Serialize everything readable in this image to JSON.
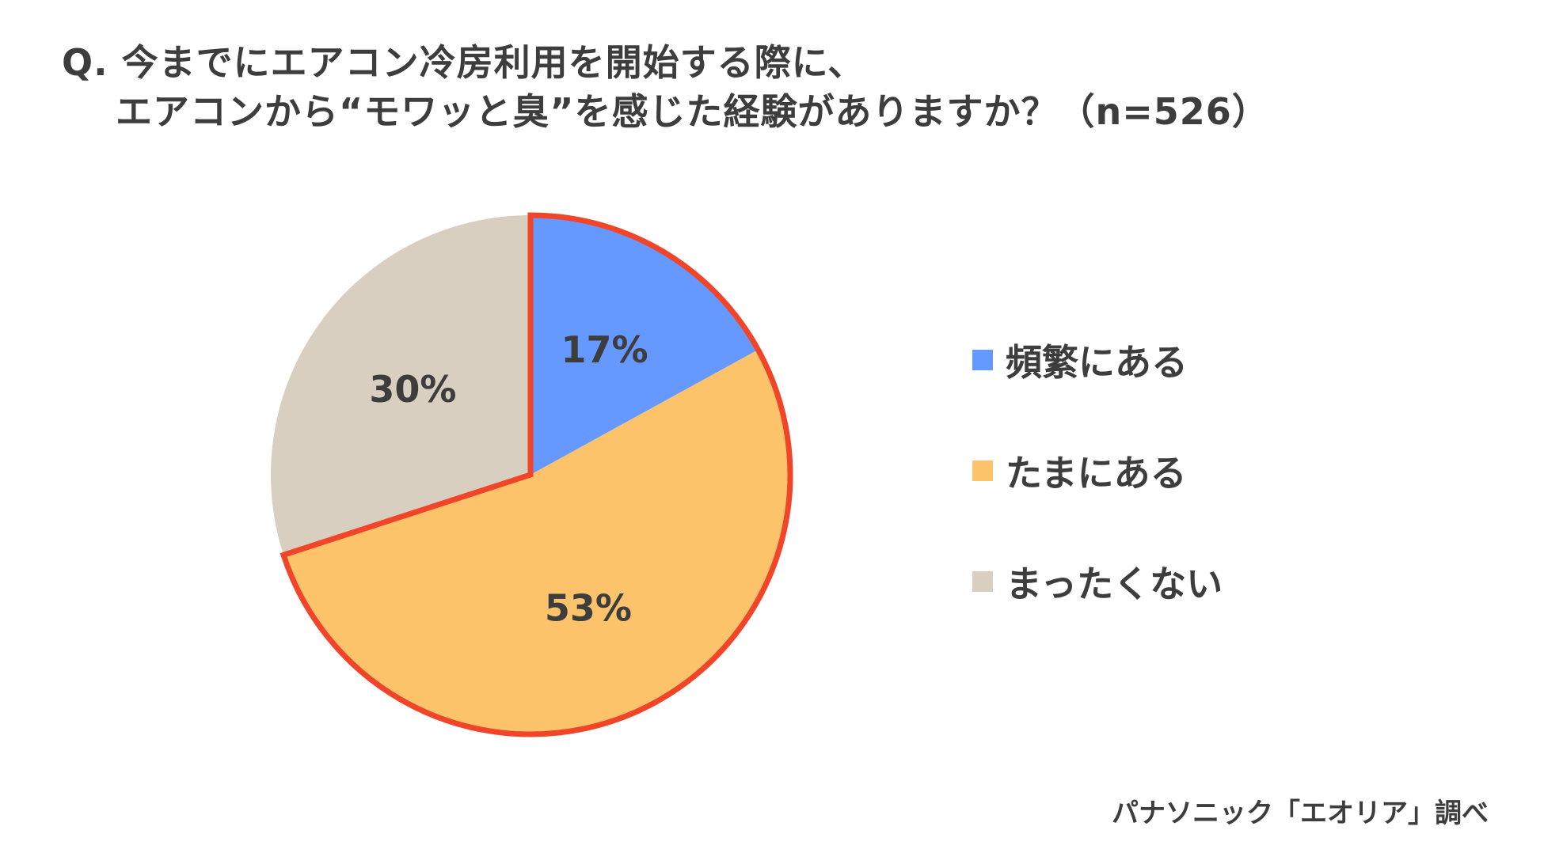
{
  "title": {
    "line1": "Q. 今までにエアコン冷房利用を開始する際に、",
    "line2": "エアコンから“モワッと臭”を感じた経験がありますか？（n=526）"
  },
  "source": "パナソニック「エオリア」調べ",
  "highlight_color": "#f1452a",
  "chart_data": {
    "type": "pie",
    "title": "Q. 今までにエアコン冷房利用を開始する際に、エアコンから“モワッと臭”を感じた経験がありますか？（n=526）",
    "legend_position": "right",
    "categories": [
      "頻繁にある",
      "たまにある",
      "まったくない"
    ],
    "values": [
      17,
      53,
      30
    ],
    "labels": [
      "17%",
      "53%",
      "30%"
    ],
    "colors": [
      "#6699ff",
      "#fcc36a",
      "#d9cfc1"
    ],
    "highlighted": [
      "頻繁にある",
      "たまにある"
    ]
  }
}
